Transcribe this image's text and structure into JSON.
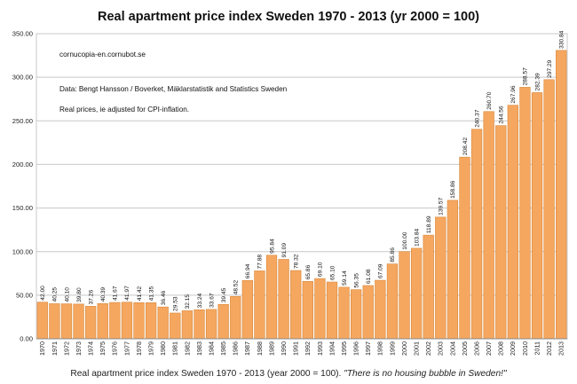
{
  "chart_data": {
    "type": "bar",
    "title": "Real apartment price index Sweden 1970 - 2013 (yr 2000 = 100)",
    "annotations": [
      "cornucopia-en.cornubot.se",
      "Data: Bengt Hansson / Boverket, Mäklarstatistik and Statistics Sweden",
      "Real prices, ie adjusted for CPI-inflation."
    ],
    "categories": [
      "1970",
      "1971",
      "1972",
      "1973",
      "1974",
      "1975",
      "1976",
      "1977",
      "1978",
      "1979",
      "1980",
      "1981",
      "1982",
      "1983",
      "1984",
      "1985",
      "1986",
      "1987",
      "1988",
      "1989",
      "1990",
      "1991",
      "1992",
      "1993",
      "1994",
      "1995",
      "1996",
      "1997",
      "1998",
      "1999",
      "2000",
      "2001",
      "2002",
      "2003",
      "2004",
      "2005",
      "2006",
      "2007",
      "2008",
      "2009",
      "2010",
      "2011",
      "2012",
      "2013"
    ],
    "values": [
      42.0,
      40.25,
      40.1,
      39.8,
      37.26,
      40.39,
      41.67,
      41.97,
      41.42,
      41.35,
      36.46,
      29.53,
      32.15,
      33.24,
      33.67,
      39.45,
      48.52,
      66.94,
      77.88,
      95.84,
      91.09,
      78.32,
      65.86,
      69.1,
      65.1,
      59.14,
      56.35,
      61.08,
      67.09,
      85.86,
      100.0,
      103.84,
      118.89,
      139.57,
      158.86,
      208.42,
      240.37,
      260.7,
      244.56,
      267.96,
      288.57,
      282.39,
      297.29,
      330.84
    ],
    "value_labels": [
      "42.00",
      "40.25",
      "40.10",
      "39.80",
      "37.26",
      "40.39",
      "41.67",
      "41.97",
      "41.42",
      "41.35",
      "36.46",
      "29.53",
      "32.15",
      "33.24",
      "33.67",
      "39.45",
      "48.52",
      "66.94",
      "77.88",
      "95.84",
      "91.09",
      "78.32",
      "65.86",
      "69.10",
      "65.10",
      "59.14",
      "56.35",
      "61.08",
      "67.09",
      "85.86",
      "100.00",
      "103.84",
      "118.89",
      "139.57",
      "158.86",
      "208.42",
      "240.37",
      "260.70",
      "244.56",
      "267.96",
      "288.57",
      "282.39",
      "297.29",
      "330.84"
    ],
    "y_ticks": [
      "0.00",
      "50.00",
      "100.00",
      "150.00",
      "200.00",
      "250.00",
      "300.00",
      "350.00"
    ],
    "ylim": [
      0,
      350
    ],
    "grid": true,
    "legend": "none",
    "colors": {
      "bar": "#f5a760",
      "bar_edge": "#d98637",
      "grid": "#c8c8c8",
      "axis": "#888888"
    }
  },
  "caption": {
    "main": "Real apartment price index Sweden 1970 - 2013 (year 2000 = 100). ",
    "quote": "\"There is no housing bubble in Sweden!\""
  }
}
